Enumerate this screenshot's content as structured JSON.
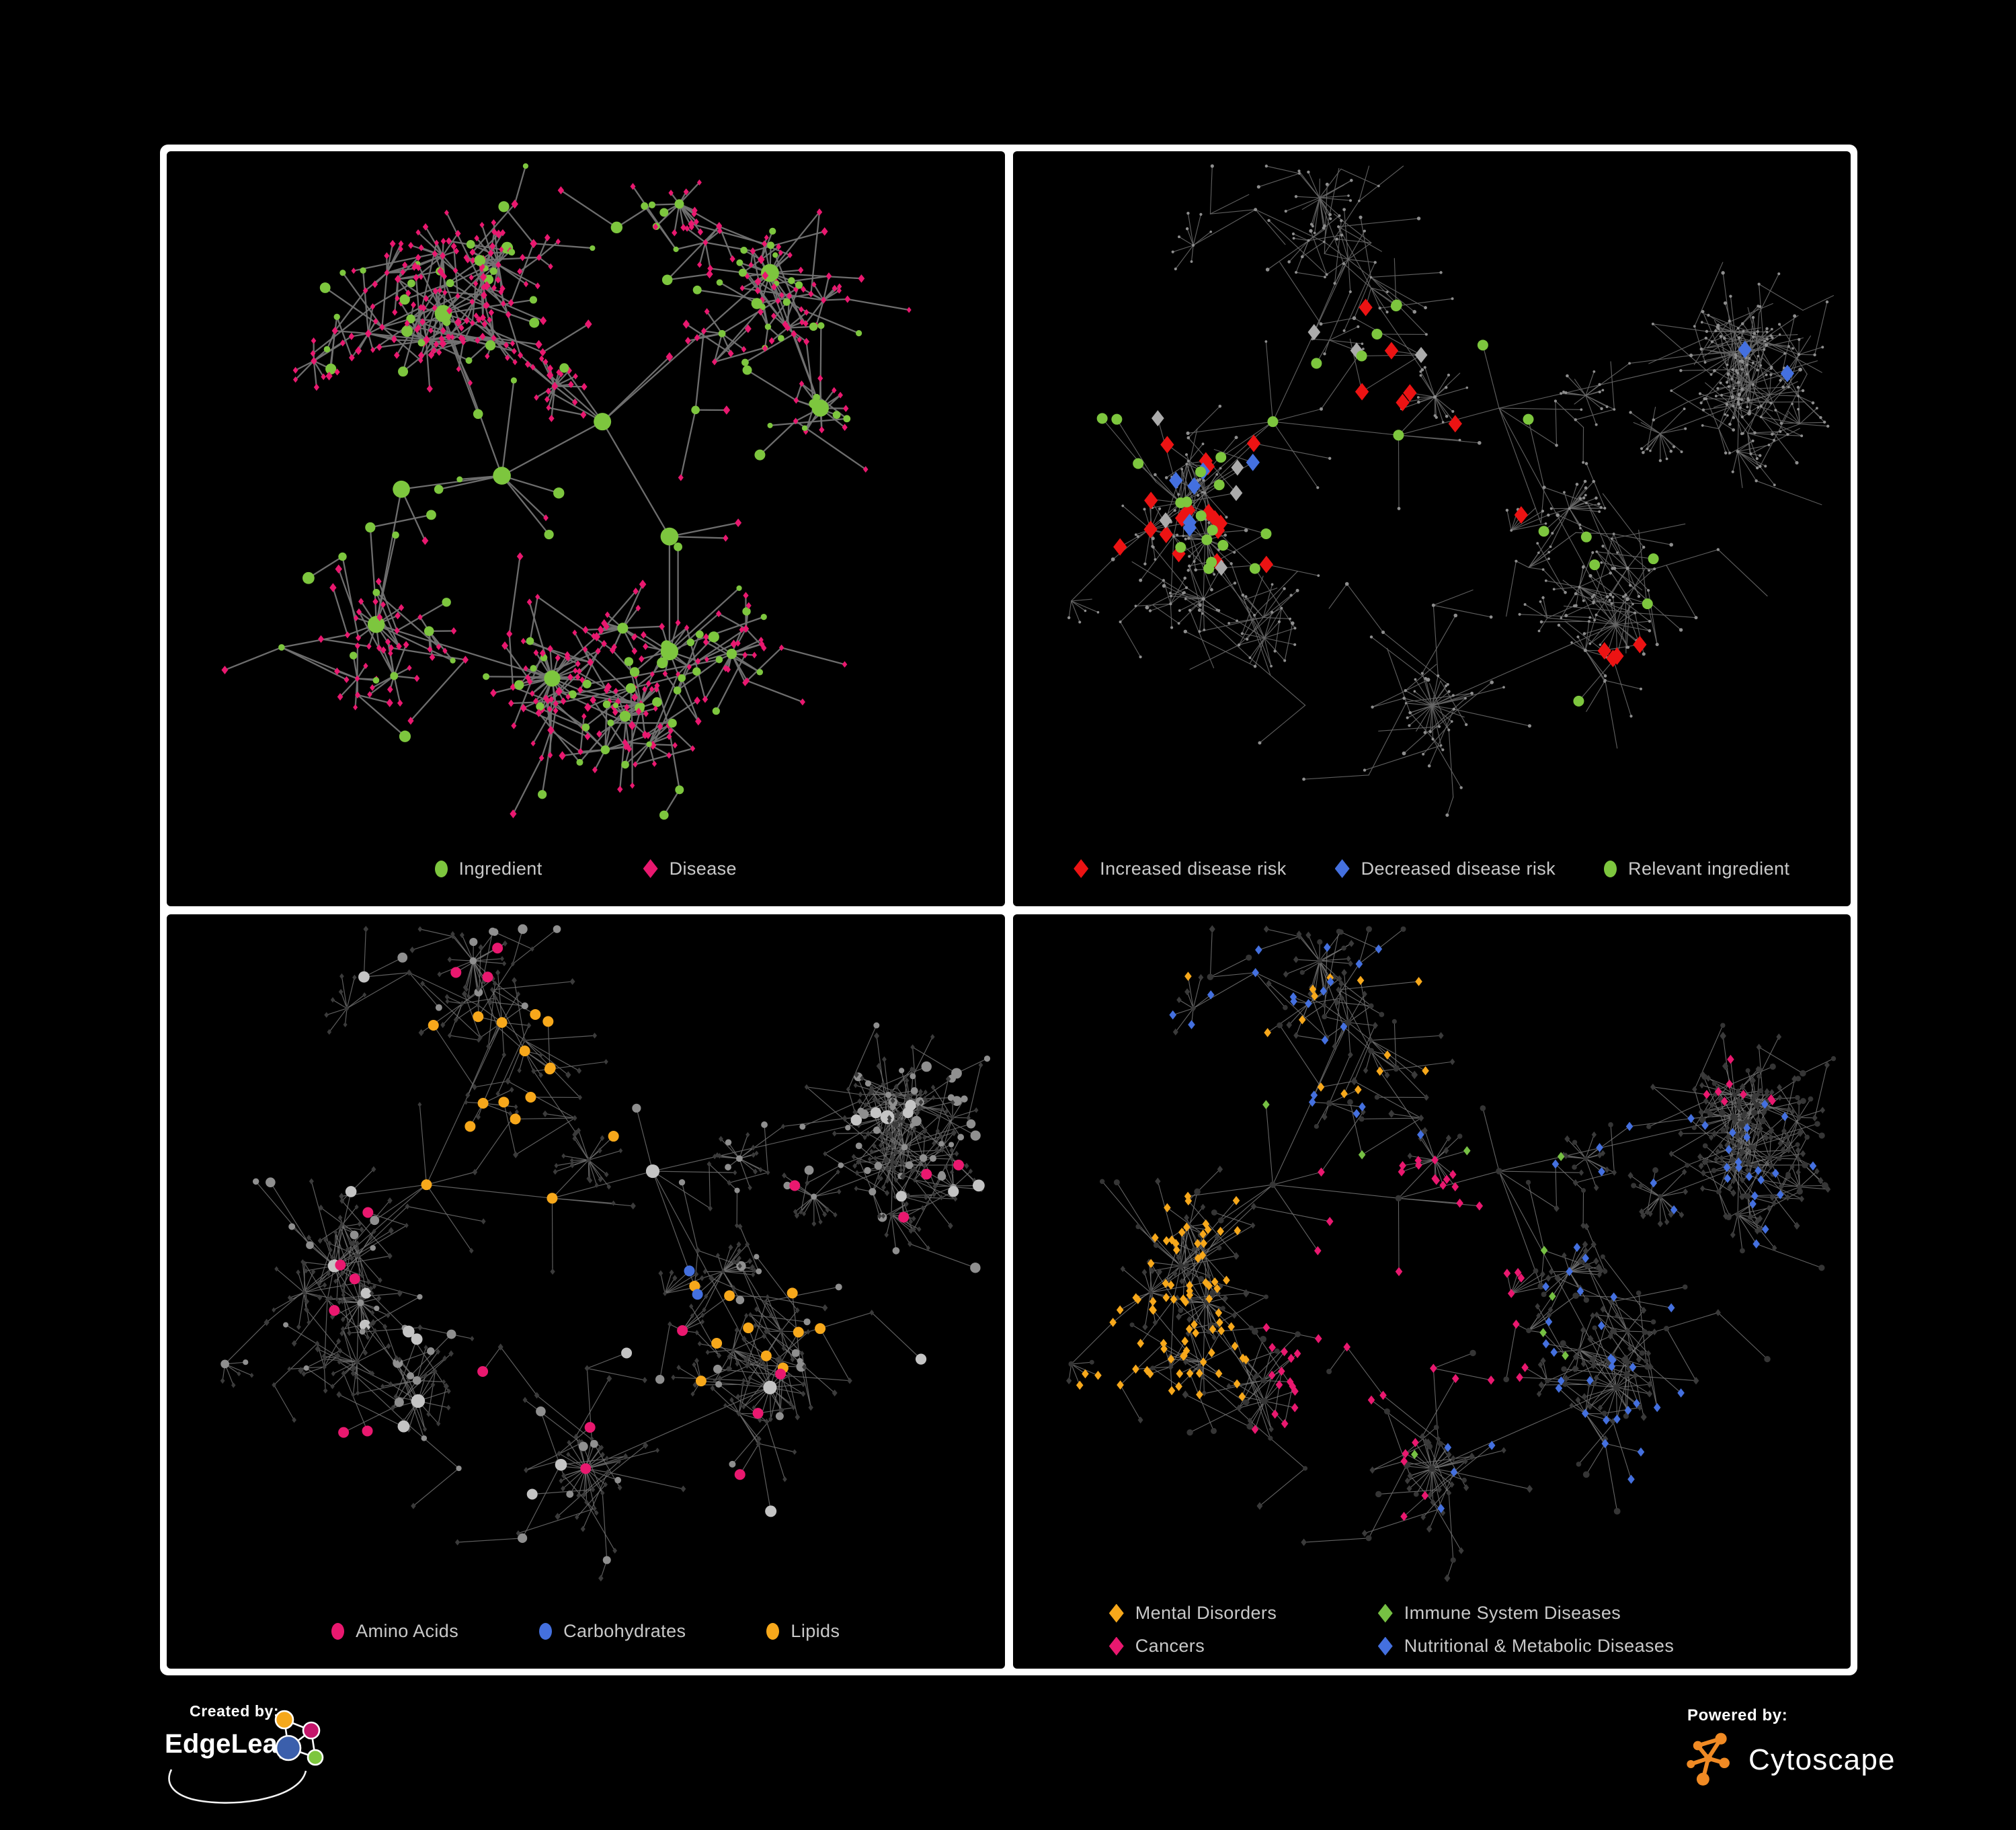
{
  "figure": {
    "background": "#000000",
    "frame_color": "#ffffff",
    "legend_text_color": "#c9c9c9"
  },
  "colors": {
    "green": "#7DC63E",
    "pink": "#E9186F",
    "red": "#EC1313",
    "blue": "#4470DF",
    "silver": "#ABABAB",
    "orange": "#F7A81B",
    "lime_diamond": "#76C043",
    "dim_gray": "#3A3A3A",
    "node_gray": "#8F8F8F",
    "edge_gray": "#6E6E6E"
  },
  "layouts": {
    "A": {
      "seed": 41,
      "count": 640,
      "step": 100,
      "decay": 0.05,
      "bias": 1.6,
      "burst": 0.12,
      "leaf": 36,
      "leafCircleFrac": 0.1,
      "circleFrac": 0.4,
      "extra": 300,
      "linkDist": 140,
      "hubs": [
        [
          0.4,
          0.48,
          0
        ],
        [
          0.28,
          0.5,
          0
        ],
        [
          0.52,
          0.4,
          0
        ],
        [
          0.33,
          0.24,
          12
        ],
        [
          0.6,
          0.57,
          0
        ],
        [
          0.25,
          0.7,
          14
        ],
        [
          0.72,
          0.18,
          16
        ],
        [
          0.78,
          0.38,
          10
        ],
        [
          0.46,
          0.78,
          26
        ],
        [
          0.6,
          0.74,
          12
        ]
      ]
    },
    "B": {
      "seed": 87,
      "count": 800,
      "step": 96,
      "decay": 0.055,
      "bias": 1.6,
      "burst": 0.1,
      "leaf": 38,
      "leafCircleFrac": 0.1,
      "circleFrac": 0.38,
      "extra": 160,
      "linkDist": 115,
      "hubs": [
        [
          0.46,
          0.42,
          0
        ],
        [
          0.31,
          0.4,
          0
        ],
        [
          0.58,
          0.38,
          0
        ],
        [
          0.4,
          0.16,
          10
        ],
        [
          0.2,
          0.52,
          12
        ],
        [
          0.86,
          0.3,
          14
        ],
        [
          0.72,
          0.7,
          18
        ],
        [
          0.5,
          0.82,
          26
        ],
        [
          0.3,
          0.72,
          12
        ],
        [
          0.63,
          0.55,
          0
        ]
      ]
    }
  },
  "panels": [
    {
      "id": "ingredient-disease",
      "legend": {
        "items": [
          {
            "label": "Ingredient",
            "shape": "circle",
            "color": "#7DC63E"
          },
          {
            "label": "Disease",
            "shape": "diamond",
            "color": "#E9186F"
          }
        ]
      },
      "network": {
        "layout": "A",
        "hl_seed": 5,
        "edge": {
          "color": "#737373",
          "width": 2.3,
          "opacity": 0.95
        },
        "base": {
          "circle": {
            "color": "#7DC63E",
            "rmin": 4,
            "rmax": 9,
            "rootBoost": 1.5
          },
          "diamond": {
            "color": "#E9186F",
            "hmin": 4.5,
            "hmax": 7
          }
        },
        "highlights": []
      }
    },
    {
      "id": "disease-risk",
      "legend": {
        "items": [
          {
            "label": "Increased disease risk",
            "shape": "diamond",
            "color": "#EC1313"
          },
          {
            "label": "Decreased disease risk",
            "shape": "diamond",
            "color": "#4470DF"
          },
          {
            "label": "Relevant ingredient",
            "shape": "circle",
            "color": "#7DC63E"
          }
        ]
      },
      "network": {
        "layout": "B",
        "hl_seed": 11,
        "edge": {
          "color": "#676767",
          "width": 1.15,
          "opacity": 0.9
        },
        "base": {
          "circle": {
            "color": "#8E8E8E",
            "rmin": 1.8,
            "rmax": 2.9,
            "dot": true
          },
          "diamond": {
            "color": "#8E8E8E",
            "hmin": 1.8,
            "hmax": 2.9,
            "dot": true
          }
        },
        "highlights": [
          {
            "shape": "d",
            "color": "#EC1313",
            "count": 24,
            "region": [
              0.08,
              0.22,
              0.62,
              0.62
            ],
            "h": 13
          },
          {
            "shape": "d",
            "color": "#EC1313",
            "count": 4,
            "region": [
              0.62,
              0.6,
              0.82,
              0.95
            ],
            "h": 13
          },
          {
            "shape": "d",
            "color": "#4470DF",
            "count": 6,
            "region": [
              0.1,
              0.28,
              0.3,
              0.58
            ],
            "h": 13
          },
          {
            "shape": "d",
            "color": "#4470DF",
            "count": 2,
            "region": [
              0.8,
              0.22,
              0.93,
              0.34
            ],
            "h": 13
          },
          {
            "shape": "d",
            "color": "#ABABAB",
            "count": 8,
            "region": [
              0.12,
              0.25,
              0.62,
              0.62
            ],
            "h": 12
          },
          {
            "shape": "c",
            "color": "#7DC63E",
            "count": 26,
            "region": [
              0.08,
              0.22,
              0.62,
              0.62
            ],
            "r": 8
          },
          {
            "shape": "c",
            "color": "#7DC63E",
            "count": 6,
            "region": [
              0.6,
              0.55,
              0.9,
              0.88
            ],
            "r": 8
          }
        ]
      }
    },
    {
      "id": "nutrient-classes",
      "legend": {
        "items": [
          {
            "label": "Amino Acids",
            "shape": "circle",
            "color": "#E9186F"
          },
          {
            "label": "Carbohydrates",
            "shape": "circle",
            "color": "#4470DF"
          },
          {
            "label": "Lipids",
            "shape": "circle",
            "color": "#F7A81B"
          }
        ]
      },
      "network": {
        "layout": "B",
        "hl_seed": 23,
        "edge": {
          "color": "#6E6E6E",
          "width": 1.2,
          "opacity": 0.85
        },
        "base": {
          "circle": {
            "color": "#8F8F8F",
            "color2": "#C4C4C4",
            "rmin": 4,
            "rmax": 9,
            "rootBoost": 1.2
          },
          "diamond": {
            "color": "#3B3B3B",
            "hmin": 3.8,
            "hmax": 5.4
          }
        },
        "highlights": [
          {
            "shape": "c",
            "color": "#F7A81B",
            "count": 55,
            "region": [
              0.25,
              0.14,
              0.56,
              0.42
            ],
            "r": 8
          },
          {
            "shape": "c",
            "color": "#F7A81B",
            "count": 12,
            "region": [
              0.36,
              0.5,
              0.5,
              0.63
            ],
            "r": 8.5
          },
          {
            "shape": "c",
            "color": "#F7A81B",
            "count": 10,
            "region": [
              0.52,
              0.42,
              0.82,
              0.75
            ],
            "r": 8
          },
          {
            "shape": "c",
            "color": "#4470DF",
            "count": 10,
            "region": [
              0.27,
              0.15,
              0.5,
              0.4
            ],
            "r": 8
          },
          {
            "shape": "c",
            "color": "#4470DF",
            "count": 2,
            "region": [
              0.55,
              0.52,
              0.72,
              0.66
            ],
            "r": 8
          },
          {
            "shape": "c",
            "color": "#E9186F",
            "count": 6,
            "region": [
              0.02,
              0.22,
              0.25,
              0.85
            ],
            "r": 8
          },
          {
            "shape": "c",
            "color": "#E9186F",
            "count": 7,
            "region": [
              0.33,
              0.58,
              0.75,
              0.92
            ],
            "r": 8
          },
          {
            "shape": "c",
            "color": "#E9186F",
            "count": 4,
            "region": [
              0.72,
              0.22,
              0.97,
              0.6
            ],
            "r": 8
          },
          {
            "shape": "c",
            "color": "#E9186F",
            "count": 3,
            "region": [
              0.28,
              0.03,
              0.62,
              0.2
            ],
            "r": 8
          }
        ]
      }
    },
    {
      "id": "disease-categories",
      "legend": {
        "items": [
          {
            "label": "Mental Disorders",
            "shape": "diamond",
            "color": "#F7A81B"
          },
          {
            "label": "Immune System Diseases",
            "shape": "diamond",
            "color": "#76C043"
          },
          {
            "label": "Cancers",
            "shape": "diamond",
            "color": "#E9186F"
          },
          {
            "label": "Nutritional & Metabolic Diseases",
            "shape": "diamond",
            "color": "#4470DF"
          }
        ]
      },
      "network": {
        "layout": "B",
        "hl_seed": 31,
        "edge": {
          "color": "#6F6F6F",
          "width": 1.1,
          "opacity": 0.9
        },
        "base": {
          "circle": {
            "color": "#353535",
            "rmin": 3.5,
            "rmax": 5
          },
          "diamond": {
            "color": "#3A3A3A",
            "hmin": 4.6,
            "hmax": 6.4
          }
        },
        "highlights": [
          {
            "shape": "d",
            "color": "#F7A81B",
            "count": 80,
            "region": [
              0.03,
              0.36,
              0.28,
              0.72
            ],
            "h": 6.8
          },
          {
            "shape": "d",
            "color": "#F7A81B",
            "count": 14,
            "region": [
              0.08,
              0.04,
              0.58,
              0.3
            ],
            "h": 6.8
          },
          {
            "shape": "d",
            "color": "#E9186F",
            "count": 55,
            "region": [
              0.3,
              0.36,
              0.62,
              0.76
            ],
            "h": 6.8
          },
          {
            "shape": "d",
            "color": "#E9186F",
            "count": 8,
            "region": [
              0.72,
              0.08,
              0.96,
              0.28
            ],
            "h": 6.8
          },
          {
            "shape": "d",
            "color": "#E9186F",
            "count": 6,
            "region": [
              0.18,
              0.75,
              0.5,
              0.94
            ],
            "h": 6.8
          },
          {
            "shape": "d",
            "color": "#4470DF",
            "count": 35,
            "region": [
              0.55,
              0.28,
              0.97,
              0.62
            ],
            "h": 6.8
          },
          {
            "shape": "d",
            "color": "#4470DF",
            "count": 25,
            "region": [
              0.45,
              0.6,
              0.92,
              0.92
            ],
            "h": 6.8
          },
          {
            "shape": "d",
            "color": "#4470DF",
            "count": 20,
            "region": [
              0.05,
              0.03,
              0.52,
              0.33
            ],
            "h": 6.8
          },
          {
            "shape": "d",
            "color": "#76C043",
            "count": 9,
            "region": [
              0.3,
              0.26,
              0.66,
              0.8
            ],
            "h": 6.8
          }
        ]
      }
    }
  ],
  "footer": {
    "created_by": {
      "label": "Created by:",
      "brand": "EdgeLeap"
    },
    "powered_by": {
      "label": "Powered by:",
      "brand": "Cytoscape"
    },
    "edgeleap_glyph_colors": {
      "orange": "#F5A81C",
      "pink": "#C4166B",
      "blue": "#3B5FAC",
      "green": "#7DC63E"
    },
    "cytoscape_orange": "#F08A24"
  }
}
